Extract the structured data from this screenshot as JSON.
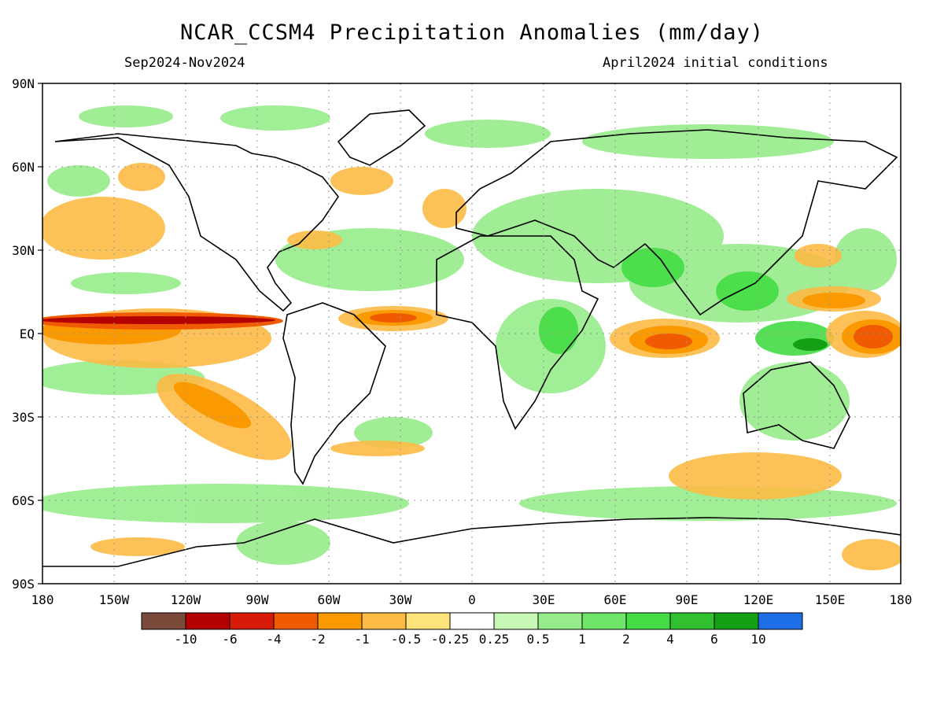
{
  "title": "NCAR_CCSM4 Precipitation Anomalies (mm/day)",
  "subtitle_left": "Sep2024-Nov2024",
  "subtitle_right": "April2024 initial conditions",
  "lat_labels": [
    "90N",
    "60N",
    "30N",
    "EQ",
    "30S",
    "60S",
    "90S"
  ],
  "lon_labels": [
    "180",
    "150W",
    "120W",
    "90W",
    "60W",
    "30W",
    "0",
    "30E",
    "60E",
    "90E",
    "120E",
    "150E",
    "180"
  ],
  "legend": {
    "colors": [
      "#7a4a3a",
      "#b40000",
      "#d81a08",
      "#f05a00",
      "#fa9a00",
      "#fdbb45",
      "#fde37a",
      "#ffffff",
      "#c6f7b4",
      "#96ec8a",
      "#6ee468",
      "#44dc44",
      "#30c030",
      "#14a014",
      "#1e6ee8"
    ],
    "labels": [
      "-10",
      "-6",
      "-4",
      "-2",
      "-1",
      "-0.5",
      "-0.25",
      "0.25",
      "0.5",
      "1",
      "2",
      "4",
      "6",
      "10"
    ]
  }
}
